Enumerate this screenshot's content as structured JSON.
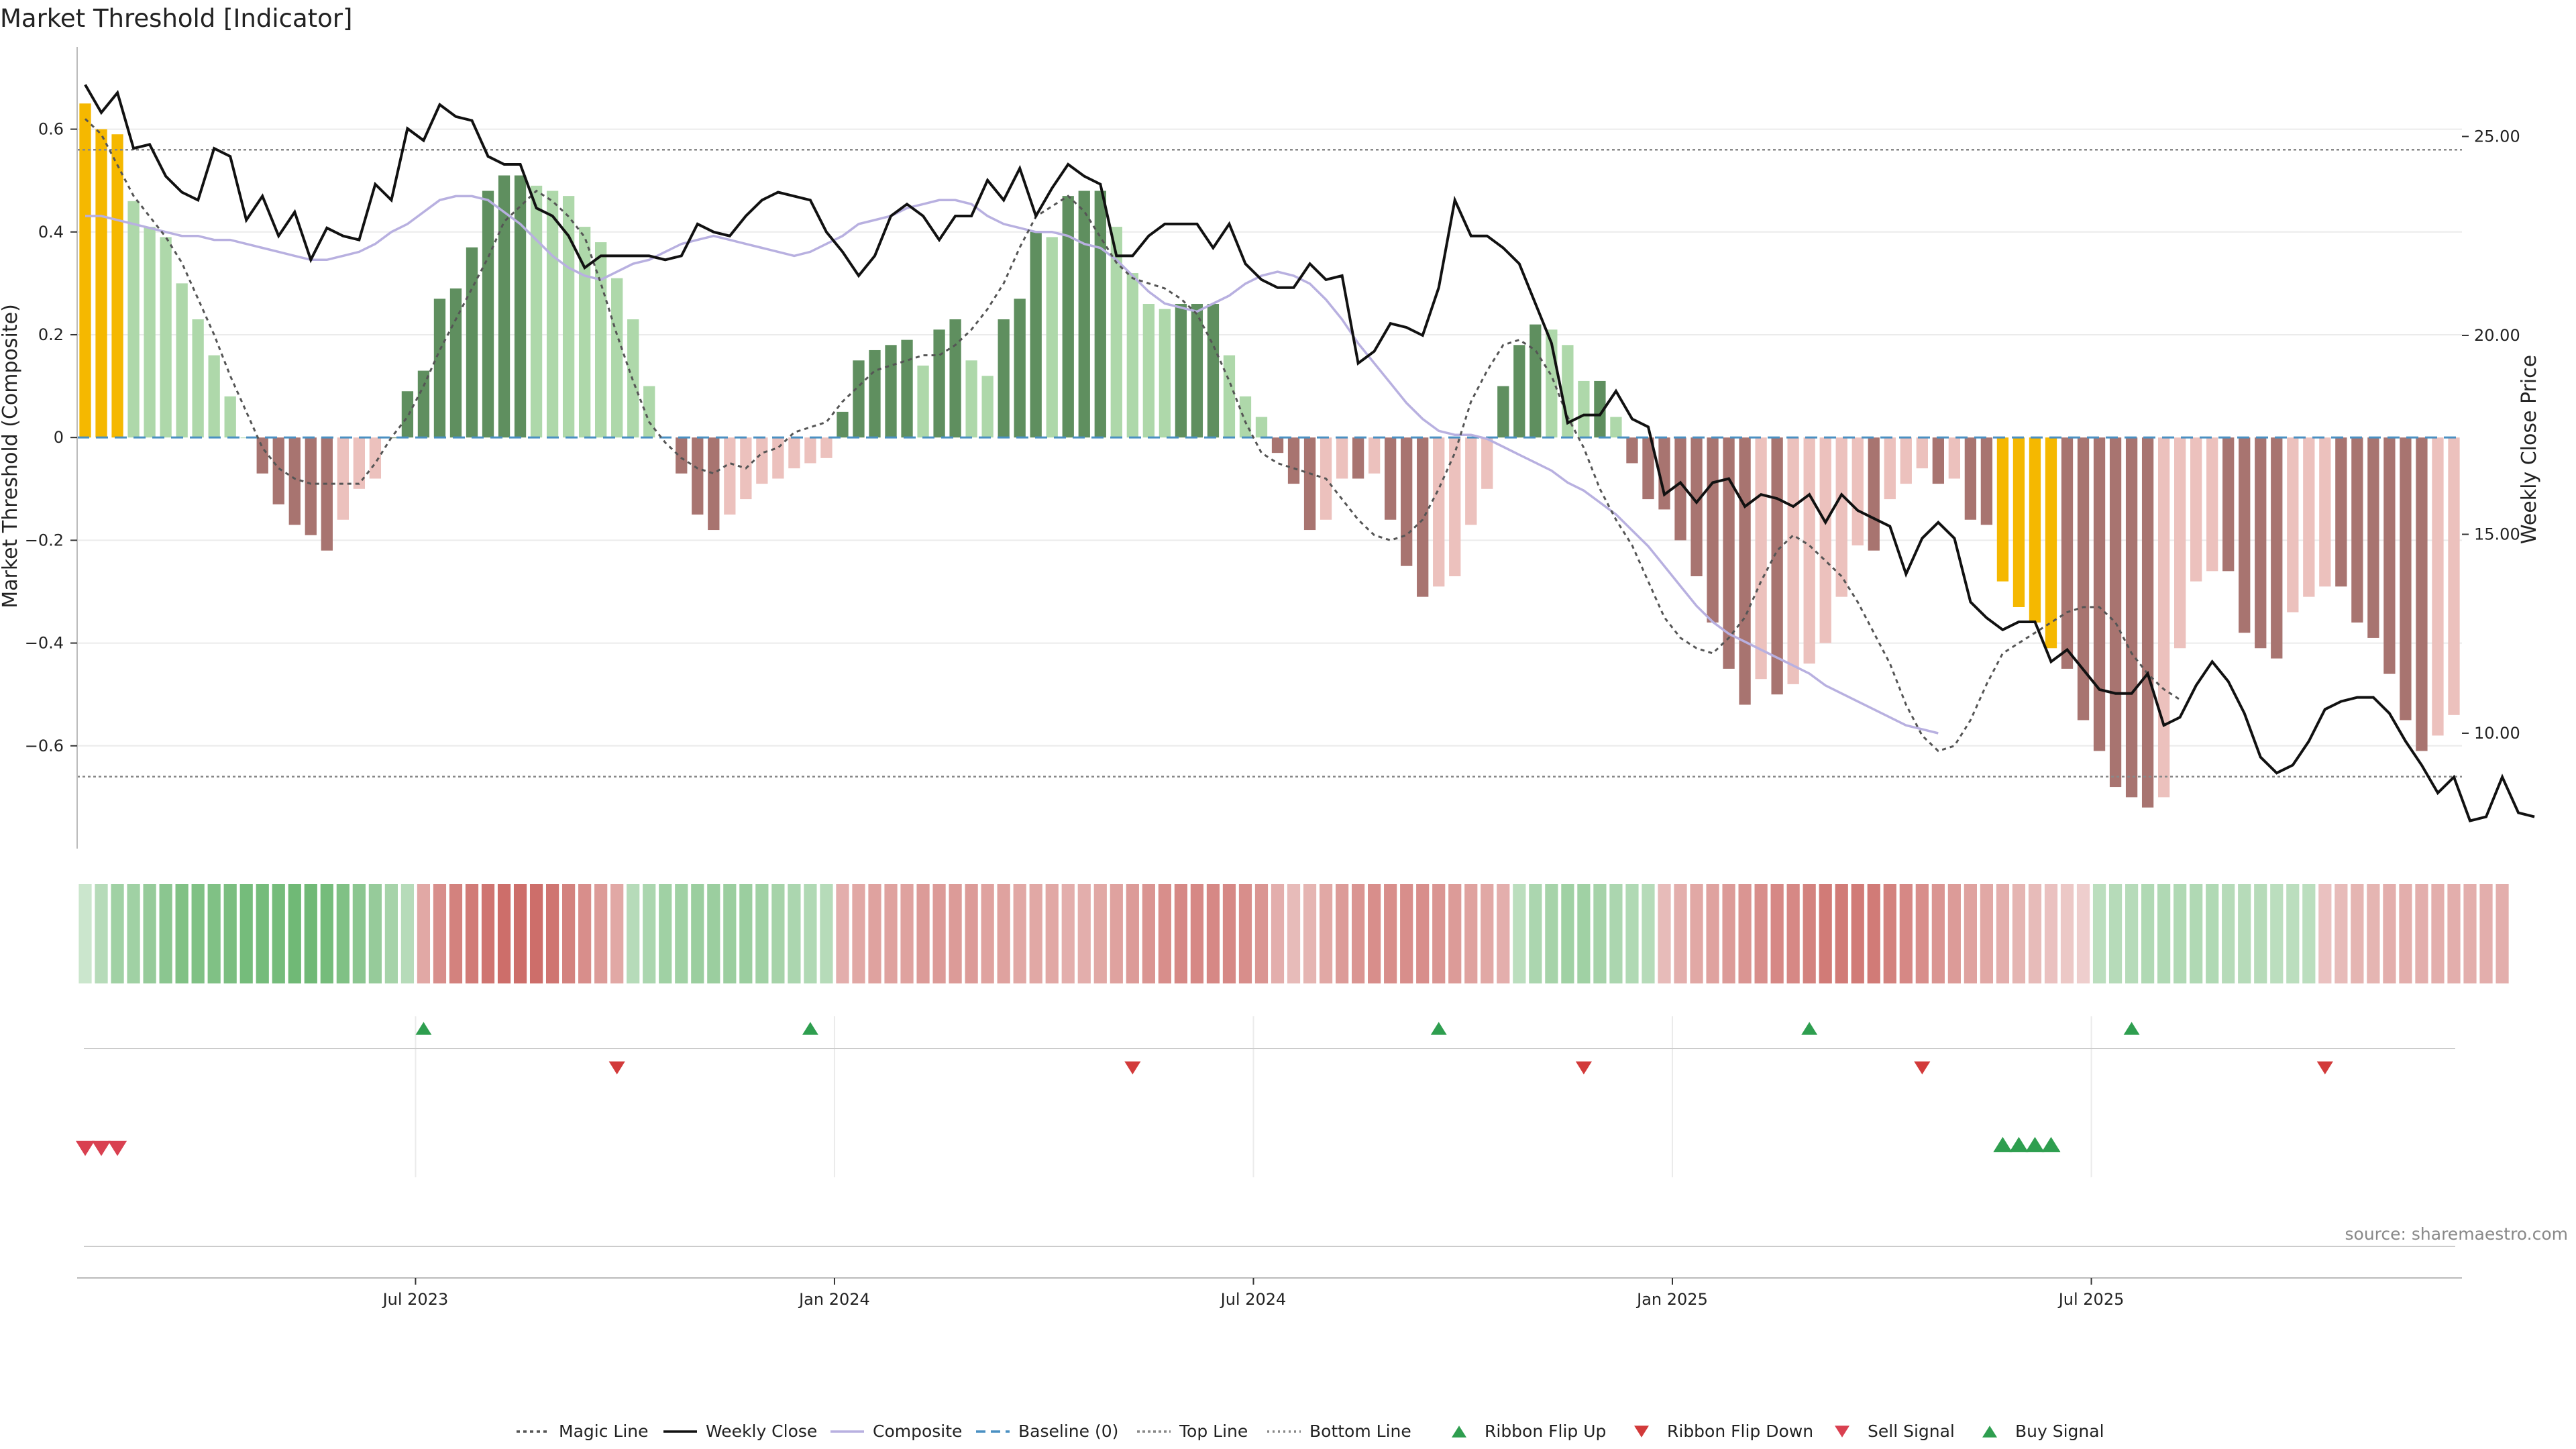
{
  "title": "Market Threshold [Indicator]",
  "source": "source: sharemaestro.com",
  "colors": {
    "positive_strong": "#5f8f5f",
    "positive_light": "#aed8aa",
    "negative_strong": "#a87470",
    "negative_light": "#ecc1bd",
    "extreme": "#f5b800",
    "price": "#111111",
    "composite": "#b8b0e0",
    "magic": "#555555",
    "baseline": "#4a90c2",
    "flip_up": "#2e9e4f",
    "flip_down": "#d23a3a",
    "sell_signal": "#d94050",
    "buy_signal": "#2e9e4f"
  },
  "chart_data": {
    "type": "bar",
    "title": "Market Threshold [Indicator]",
    "ylabel": "Market Threshold (Composite)",
    "y2label": "Weekly Close Price",
    "ylim": [
      -0.8,
      0.76
    ],
    "y2lim": [
      7.1,
      27.25
    ],
    "yticks": [
      "0.6",
      "0.4",
      "0.2",
      "0",
      "−0.2",
      "−0.4",
      "−0.6"
    ],
    "y2ticks": [
      "25.00",
      "20.00",
      "15.00",
      "10.00"
    ],
    "xticks": [
      "Jul 2023",
      "Jan 2024",
      "Jul 2024",
      "Jan 2025",
      "Jul 2025"
    ],
    "xtick_weeks": [
      21,
      47,
      73,
      99,
      125
    ],
    "top_line": 0.56,
    "bottom_line": -0.66,
    "composite": [
      0.65,
      0.6,
      0.59,
      0.46,
      0.41,
      0.39,
      0.3,
      0.23,
      0.16,
      0.08,
      0.0,
      -0.07,
      -0.13,
      -0.17,
      -0.19,
      -0.22,
      -0.16,
      -0.1,
      -0.08,
      0.0,
      0.09,
      0.13,
      0.27,
      0.29,
      0.37,
      0.48,
      0.51,
      0.51,
      0.49,
      0.48,
      0.47,
      0.41,
      0.38,
      0.31,
      0.23,
      0.1,
      0.0,
      -0.07,
      -0.15,
      -0.18,
      -0.15,
      -0.12,
      -0.09,
      -0.08,
      -0.06,
      -0.05,
      -0.04,
      0.05,
      0.15,
      0.17,
      0.18,
      0.19,
      0.14,
      0.21,
      0.23,
      0.15,
      0.12,
      0.23,
      0.27,
      0.4,
      0.39,
      0.47,
      0.48,
      0.48,
      0.41,
      0.32,
      0.26,
      0.25,
      0.26,
      0.26,
      0.26,
      0.16,
      0.08,
      0.04,
      -0.03,
      -0.09,
      -0.18,
      -0.16,
      -0.08,
      -0.08,
      -0.07,
      -0.16,
      -0.25,
      -0.31,
      -0.29,
      -0.27,
      -0.17,
      -0.1,
      0.1,
      0.18,
      0.22,
      0.21,
      0.18,
      0.11,
      0.11,
      0.04,
      -0.05,
      -0.12,
      -0.14,
      -0.2,
      -0.27,
      -0.36,
      -0.45,
      -0.52,
      -0.47,
      -0.5,
      -0.48,
      -0.44,
      -0.4,
      -0.31,
      -0.21,
      -0.22,
      -0.12,
      -0.09,
      -0.06,
      -0.09,
      -0.08,
      -0.16,
      -0.17,
      -0.28,
      -0.33,
      -0.36,
      -0.41,
      -0.45,
      -0.55,
      -0.61,
      -0.68,
      -0.7,
      -0.72,
      -0.7,
      -0.41,
      -0.28,
      -0.26,
      -0.26,
      -0.38,
      -0.41,
      -0.43,
      -0.34,
      -0.31,
      -0.29,
      -0.29,
      -0.36,
      -0.39,
      -0.46,
      -0.55,
      -0.61,
      -0.58,
      -0.54
    ],
    "extreme_weeks": [
      0,
      1,
      2,
      119,
      120,
      121,
      122
    ],
    "magic_line": [
      0.62,
      0.59,
      0.53,
      0.47,
      0.43,
      0.39,
      0.34,
      0.27,
      0.2,
      0.12,
      0.05,
      -0.02,
      -0.06,
      -0.08,
      -0.09,
      -0.09,
      -0.09,
      -0.09,
      -0.05,
      0.0,
      0.04,
      0.1,
      0.17,
      0.23,
      0.29,
      0.35,
      0.42,
      0.45,
      0.48,
      0.46,
      0.43,
      0.39,
      0.3,
      0.2,
      0.11,
      0.03,
      -0.01,
      -0.04,
      -0.06,
      -0.07,
      -0.05,
      -0.06,
      -0.03,
      -0.02,
      0.01,
      0.02,
      0.03,
      0.07,
      0.1,
      0.13,
      0.14,
      0.15,
      0.16,
      0.16,
      0.18,
      0.21,
      0.25,
      0.3,
      0.37,
      0.43,
      0.45,
      0.47,
      0.44,
      0.39,
      0.34,
      0.31,
      0.3,
      0.29,
      0.27,
      0.24,
      0.18,
      0.11,
      0.03,
      -0.03,
      -0.05,
      -0.06,
      -0.07,
      -0.08,
      -0.12,
      -0.16,
      -0.19,
      -0.2,
      -0.19,
      -0.16,
      -0.1,
      -0.03,
      0.07,
      0.13,
      0.18,
      0.19,
      0.17,
      0.12,
      0.04,
      -0.02,
      -0.1,
      -0.16,
      -0.21,
      -0.28,
      -0.35,
      -0.39,
      -0.41,
      -0.42,
      -0.39,
      -0.35,
      -0.28,
      -0.22,
      -0.19,
      -0.21,
      -0.24,
      -0.27,
      -0.32,
      -0.38,
      -0.44,
      -0.52,
      -0.58,
      -0.61,
      -0.6,
      -0.55,
      -0.48,
      -0.42,
      -0.4,
      -0.38,
      -0.36,
      -0.34,
      -0.33,
      -0.33,
      -0.36,
      -0.42,
      -0.46,
      -0.49,
      -0.51
    ],
    "composite_line_price": [
      23.0,
      23.0,
      22.9,
      22.8,
      22.7,
      22.6,
      22.5,
      22.5,
      22.4,
      22.4,
      22.3,
      22.2,
      22.1,
      22.0,
      21.9,
      21.9,
      22.0,
      22.1,
      22.3,
      22.6,
      22.8,
      23.1,
      23.4,
      23.5,
      23.5,
      23.4,
      23.1,
      22.8,
      22.4,
      22.0,
      21.7,
      21.5,
      21.4,
      21.6,
      21.8,
      21.9,
      22.1,
      22.3,
      22.4,
      22.5,
      22.4,
      22.3,
      22.2,
      22.1,
      22.0,
      22.1,
      22.3,
      22.5,
      22.8,
      22.9,
      23.0,
      23.2,
      23.3,
      23.4,
      23.4,
      23.3,
      23.0,
      22.8,
      22.7,
      22.6,
      22.6,
      22.5,
      22.3,
      22.2,
      21.9,
      21.5,
      21.1,
      20.8,
      20.7,
      20.6,
      20.8,
      21.0,
      21.3,
      21.5,
      21.6,
      21.5,
      21.3,
      20.9,
      20.4,
      19.8,
      19.3,
      18.8,
      18.3,
      17.9,
      17.6,
      17.5,
      17.5,
      17.4,
      17.2,
      17.0,
      16.8,
      16.6,
      16.3,
      16.1,
      15.8,
      15.5,
      15.1,
      14.7,
      14.2,
      13.7,
      13.2,
      12.8,
      12.5,
      12.3,
      12.1,
      11.9,
      11.7,
      11.5,
      11.2,
      11.0,
      10.8,
      10.6,
      10.4,
      10.2,
      10.1,
      10.0
    ],
    "composite_line_weeks": [
      0,
      1,
      2,
      3,
      4,
      5,
      6,
      7,
      8,
      9,
      10,
      11,
      12,
      13,
      14,
      15,
      16,
      17,
      18,
      19,
      20,
      21,
      22,
      23,
      24,
      25,
      26,
      27,
      28,
      29,
      30,
      31,
      32,
      33,
      34,
      35,
      36,
      37,
      38,
      39,
      40,
      41,
      42,
      43,
      44,
      45,
      46,
      47,
      48,
      49,
      50,
      51,
      52,
      53,
      54,
      55,
      56,
      57,
      58,
      59,
      60,
      61,
      62,
      63,
      64,
      65,
      66,
      67,
      68,
      69,
      70,
      71,
      72,
      73,
      74,
      75,
      76,
      77,
      78,
      79,
      80,
      81,
      82,
      83,
      84,
      85,
      86,
      87,
      88,
      89,
      90,
      91,
      92,
      93,
      94,
      95,
      96,
      97,
      98,
      99,
      100,
      101,
      102,
      103,
      104,
      105,
      106,
      107,
      108,
      109,
      110,
      111,
      112,
      113,
      114,
      115
    ],
    "weekly_close": [
      26.3,
      25.6,
      26.1,
      24.7,
      24.8,
      24.0,
      23.6,
      23.4,
      24.7,
      24.5,
      22.9,
      23.5,
      22.5,
      23.1,
      21.9,
      22.7,
      22.5,
      22.4,
      23.8,
      23.4,
      25.2,
      24.9,
      25.8,
      25.5,
      25.4,
      24.5,
      24.3,
      24.3,
      23.2,
      23.0,
      22.5,
      21.7,
      22.0,
      22.0,
      22.0,
      22.0,
      21.9,
      22.0,
      22.8,
      22.6,
      22.5,
      23.0,
      23.4,
      23.6,
      23.5,
      23.4,
      22.6,
      22.1,
      21.5,
      22.0,
      23.0,
      23.3,
      23.0,
      22.4,
      23.0,
      23.0,
      23.9,
      23.4,
      24.2,
      23.0,
      23.7,
      24.3,
      24.0,
      23.8,
      22.0,
      22.0,
      22.5,
      22.8,
      22.8,
      22.8,
      22.2,
      22.8,
      21.8,
      21.4,
      21.2,
      21.2,
      21.8,
      21.4,
      21.5,
      19.3,
      19.6,
      20.3,
      20.2,
      20.0,
      21.2,
      23.4,
      22.5,
      22.5,
      22.2,
      21.8,
      20.8,
      19.8,
      17.8,
      18.0,
      18.0,
      18.6,
      17.9,
      17.7,
      16.0,
      16.3,
      15.8,
      16.3,
      16.4
    ],
    "weekly_close_weeks": [
      0,
      1,
      2,
      3,
      4,
      5,
      6,
      7,
      8,
      9,
      10,
      11,
      12,
      13,
      14,
      15,
      16,
      17,
      18,
      19,
      20,
      21,
      22,
      23,
      24,
      25,
      26,
      27,
      28,
      29,
      30,
      31,
      32,
      33,
      34,
      35,
      36,
      37,
      38,
      39,
      40,
      41,
      42,
      43,
      44,
      45,
      46,
      47,
      48,
      49,
      50,
      51,
      52,
      53,
      54,
      55,
      56,
      57,
      58,
      59,
      60,
      61,
      62,
      63,
      64,
      65,
      66,
      67,
      68,
      69,
      70,
      71,
      72,
      73,
      74,
      75,
      76,
      77,
      78,
      79,
      80,
      81,
      82,
      83,
      84,
      85,
      86,
      87,
      88,
      89,
      90,
      91,
      92,
      93,
      94,
      95,
      96,
      97,
      98,
      99,
      100,
      101,
      102
    ],
    "weekly_close_tail": [
      15.7,
      16.0,
      15.9,
      15.7,
      16.0,
      15.3,
      16.0,
      15.6,
      15.4,
      15.2,
      14.0,
      14.9,
      15.3,
      14.9,
      13.3,
      12.9,
      12.6,
      12.8,
      12.8,
      11.8,
      12.1,
      11.6,
      11.1,
      11.0,
      11.0,
      11.5,
      10.2,
      10.4,
      11.2,
      11.8,
      11.3,
      10.5,
      9.4,
      9.0,
      9.2,
      9.8,
      10.6,
      10.8,
      10.9,
      10.9,
      10.5,
      9.8,
      9.2,
      8.5,
      8.9,
      7.8,
      7.9,
      8.9,
      8.0,
      7.9
    ],
    "weekly_close_tail_weeks": [
      103,
      104,
      105,
      106,
      107,
      108,
      109,
      110,
      111,
      112,
      113,
      114,
      115,
      116,
      117,
      118,
      119,
      120,
      121,
      122,
      123,
      124,
      125,
      126,
      127,
      128,
      129,
      130,
      131,
      132,
      133,
      134,
      135,
      136,
      137,
      138,
      139,
      140,
      141,
      142,
      143,
      144,
      145,
      146,
      147,
      148,
      149,
      150,
      151,
      152
    ],
    "ribbon": [
      0.15,
      0.35,
      0.55,
      0.55,
      0.65,
      0.75,
      0.85,
      0.85,
      0.85,
      0.9,
      0.95,
      0.95,
      0.95,
      1.0,
      1.0,
      0.95,
      0.85,
      0.75,
      0.65,
      0.5,
      0.35,
      -0.35,
      -0.55,
      -0.65,
      -0.7,
      -0.75,
      -0.8,
      -0.8,
      -0.8,
      -0.75,
      -0.65,
      -0.55,
      -0.45,
      -0.35,
      0.35,
      0.45,
      0.55,
      0.55,
      0.6,
      0.6,
      0.6,
      0.6,
      0.55,
      0.5,
      0.45,
      0.4,
      0.35,
      -0.3,
      -0.35,
      -0.4,
      -0.4,
      -0.4,
      -0.45,
      -0.45,
      -0.45,
      -0.45,
      -0.4,
      -0.4,
      -0.35,
      -0.35,
      -0.35,
      -0.3,
      -0.3,
      -0.35,
      -0.4,
      -0.45,
      -0.5,
      -0.55,
      -0.6,
      -0.6,
      -0.6,
      -0.6,
      -0.55,
      -0.5,
      -0.3,
      -0.2,
      -0.25,
      -0.35,
      -0.45,
      -0.5,
      -0.55,
      -0.55,
      -0.55,
      -0.55,
      -0.5,
      -0.45,
      -0.4,
      -0.35,
      -0.3,
      0.3,
      0.45,
      0.5,
      0.55,
      0.55,
      0.5,
      0.45,
      0.4,
      0.35,
      -0.2,
      -0.3,
      -0.35,
      -0.4,
      -0.45,
      -0.5,
      -0.55,
      -0.6,
      -0.6,
      -0.65,
      -0.7,
      -0.7,
      -0.7,
      -0.7,
      -0.65,
      -0.6,
      -0.55,
      -0.5,
      -0.45,
      -0.4,
      -0.35,
      -0.3,
      -0.25,
      -0.2,
      -0.15,
      -0.1,
      -0.05,
      0.3,
      0.35,
      0.35,
      0.4,
      0.4,
      0.4,
      0.4,
      0.4,
      0.35,
      0.35,
      0.35,
      0.3,
      0.3,
      0.3,
      -0.15,
      -0.2,
      -0.25,
      -0.25,
      -0.3,
      -0.3,
      -0.3,
      -0.3,
      -0.3,
      -0.3,
      -0.3,
      -0.3
    ],
    "flip_up_weeks": [
      21,
      45,
      84,
      107,
      127
    ],
    "flip_down_weeks": [
      33,
      65,
      93,
      114,
      139
    ],
    "sell_signal_weeks": [
      0,
      1,
      2
    ],
    "buy_signal_weeks": [
      119,
      120,
      121,
      122
    ],
    "legend": [
      "Magic Line",
      "Weekly Close",
      "Composite",
      "Baseline (0)",
      "Top Line",
      "Bottom Line",
      "Ribbon Flip Up",
      "Ribbon Flip Down",
      "Sell Signal",
      "Buy Signal"
    ],
    "legend_position": "bottom-center"
  }
}
